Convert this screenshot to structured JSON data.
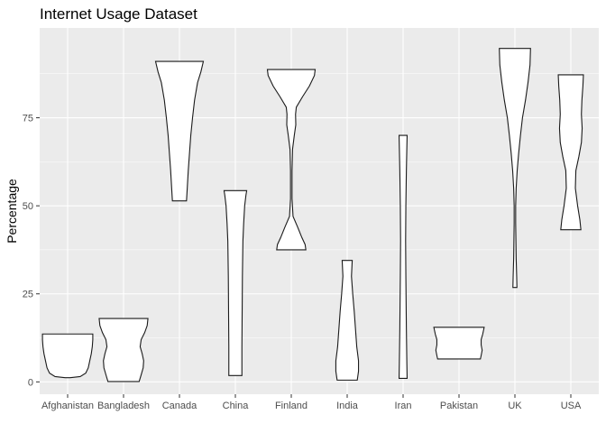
{
  "chart_data": {
    "type": "violin",
    "title": "Internet Usage Dataset",
    "xlabel": "",
    "ylabel": "Percentage",
    "ylim": [
      -3.5,
      100.5
    ],
    "yticks": [
      0,
      25,
      50,
      75
    ],
    "grid": true,
    "legend": "none",
    "categories": [
      "Afghanistan",
      "Bangladesh",
      "Canada",
      "China",
      "Finland",
      "India",
      "Iran",
      "Pakistan",
      "UK",
      "USA"
    ],
    "violins": [
      {
        "category": "Afghanistan",
        "profile": [
          [
            1.2,
            0.1
          ],
          [
            1.5,
            0.5
          ],
          [
            2.5,
            0.72
          ],
          [
            4,
            0.82
          ],
          [
            6,
            0.88
          ],
          [
            8,
            0.94
          ],
          [
            10,
            0.98
          ],
          [
            12,
            1.0
          ],
          [
            13.6,
            1.0
          ]
        ]
      },
      {
        "category": "Bangladesh",
        "profile": [
          [
            0.1,
            0.62
          ],
          [
            2,
            0.7
          ],
          [
            4,
            0.78
          ],
          [
            6,
            0.8
          ],
          [
            8,
            0.74
          ],
          [
            10,
            0.66
          ],
          [
            12,
            0.7
          ],
          [
            14,
            0.84
          ],
          [
            16,
            0.94
          ],
          [
            18,
            0.97
          ]
        ]
      },
      {
        "category": "Canada",
        "profile": [
          [
            51.4,
            0.28
          ],
          [
            55,
            0.31
          ],
          [
            60,
            0.35
          ],
          [
            65,
            0.4
          ],
          [
            70,
            0.45
          ],
          [
            75,
            0.52
          ],
          [
            80,
            0.6
          ],
          [
            85,
            0.72
          ],
          [
            88,
            0.85
          ],
          [
            91,
            0.95
          ]
        ]
      },
      {
        "category": "China",
        "profile": [
          [
            1.8,
            0.26
          ],
          [
            5,
            0.26
          ],
          [
            10,
            0.26
          ],
          [
            20,
            0.27
          ],
          [
            30,
            0.28
          ],
          [
            40,
            0.3
          ],
          [
            45,
            0.33
          ],
          [
            50,
            0.37
          ],
          [
            53,
            0.42
          ],
          [
            54.3,
            0.45
          ]
        ]
      },
      {
        "category": "Finland",
        "profile": [
          [
            37.5,
            0.58
          ],
          [
            39,
            0.55
          ],
          [
            41,
            0.42
          ],
          [
            44,
            0.25
          ],
          [
            47,
            0.07
          ],
          [
            52,
            0.03
          ],
          [
            60,
            0.03
          ],
          [
            66,
            0.05
          ],
          [
            70,
            0.12
          ],
          [
            73,
            0.18
          ],
          [
            76,
            0.17
          ],
          [
            78,
            0.2
          ],
          [
            81,
            0.45
          ],
          [
            84,
            0.72
          ],
          [
            87,
            0.92
          ],
          [
            88.7,
            0.95
          ]
        ]
      },
      {
        "category": "India",
        "profile": [
          [
            0.5,
            0.4
          ],
          [
            3,
            0.45
          ],
          [
            6,
            0.45
          ],
          [
            10,
            0.38
          ],
          [
            15,
            0.33
          ],
          [
            20,
            0.28
          ],
          [
            25,
            0.22
          ],
          [
            30,
            0.17
          ],
          [
            34.5,
            0.2
          ]
        ]
      },
      {
        "category": "Iran",
        "profile": [
          [
            1,
            0.16
          ],
          [
            5,
            0.15
          ],
          [
            15,
            0.13
          ],
          [
            30,
            0.11
          ],
          [
            40,
            0.1
          ],
          [
            50,
            0.11
          ],
          [
            60,
            0.13
          ],
          [
            70,
            0.16
          ]
        ]
      },
      {
        "category": "Pakistan",
        "profile": [
          [
            6.5,
            0.85
          ],
          [
            7.5,
            0.88
          ],
          [
            9,
            0.92
          ],
          [
            10.5,
            0.88
          ],
          [
            12,
            0.88
          ],
          [
            13.5,
            0.94
          ],
          [
            15.5,
            1.0
          ]
        ]
      },
      {
        "category": "UK",
        "profile": [
          [
            26.8,
            0.08
          ],
          [
            30,
            0.07
          ],
          [
            35,
            0.05
          ],
          [
            40,
            0.04
          ],
          [
            45,
            0.03
          ],
          [
            50,
            0.03
          ],
          [
            55,
            0.05
          ],
          [
            60,
            0.09
          ],
          [
            65,
            0.15
          ],
          [
            70,
            0.22
          ],
          [
            75,
            0.3
          ],
          [
            80,
            0.42
          ],
          [
            85,
            0.52
          ],
          [
            90,
            0.6
          ],
          [
            94.7,
            0.62
          ]
        ]
      },
      {
        "category": "USA",
        "profile": [
          [
            43.2,
            0.4
          ],
          [
            46,
            0.36
          ],
          [
            50,
            0.27
          ],
          [
            55,
            0.18
          ],
          [
            60,
            0.2
          ],
          [
            64,
            0.32
          ],
          [
            68,
            0.42
          ],
          [
            72,
            0.45
          ],
          [
            76,
            0.42
          ],
          [
            80,
            0.44
          ],
          [
            84,
            0.48
          ],
          [
            87.2,
            0.5
          ]
        ]
      }
    ]
  }
}
